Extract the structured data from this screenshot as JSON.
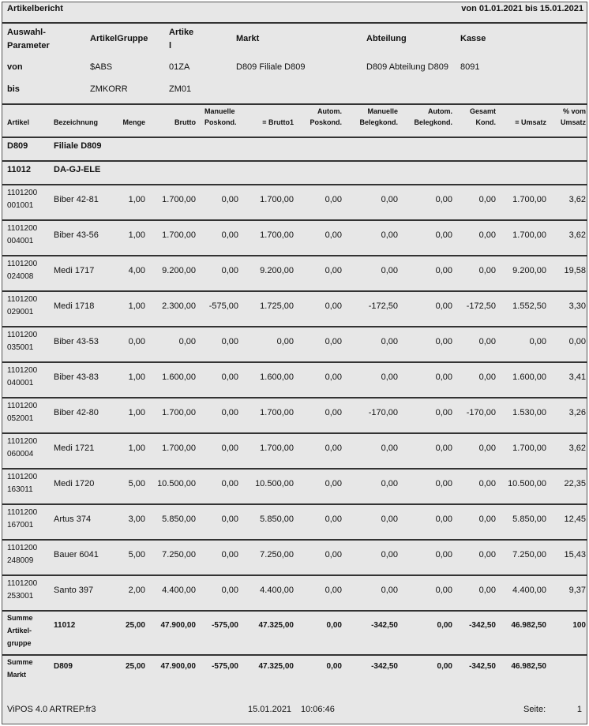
{
  "report": {
    "title": "Artikelbericht",
    "period": "von 01.01.2021 bis 15.01.2021"
  },
  "params": {
    "labels": [
      "Auswahl-\nParameter",
      "ArtikelGruppe",
      "Artike\nl",
      "Markt",
      "Abteilung",
      "Kasse"
    ],
    "von": {
      "label": "von",
      "values": [
        "$ABS",
        "01ZA",
        "D809 Filiale D809",
        "D809 Abteilung D809",
        "8091"
      ]
    },
    "bis": {
      "label": "bis",
      "values": [
        "ZMKORR",
        "ZM01"
      ]
    }
  },
  "columns": [
    "Artikel",
    "Bezeichnung",
    "Menge",
    "Brutto",
    "Manuelle\nPoskond.",
    "= Brutto1",
    "Autom.\nPoskond.",
    "Manuelle\nBelegkond.",
    "Autom.\nBelegkond.",
    "Gesamt\nKond.",
    "= Umsatz",
    "% vom\nUmsatz"
  ],
  "groups": {
    "markt": [
      "D809",
      "Filiale D809"
    ],
    "artikelgruppe": [
      "11012",
      "DA-GJ-ELE"
    ]
  },
  "rows": [
    [
      "1101200\n001001",
      "Biber 42-81",
      "1,00",
      "1.700,00",
      "0,00",
      "1.700,00",
      "0,00",
      "0,00",
      "0,00",
      "0,00",
      "1.700,00",
      "3,62"
    ],
    [
      "1101200\n004001",
      "Biber 43-56",
      "1,00",
      "1.700,00",
      "0,00",
      "1.700,00",
      "0,00",
      "0,00",
      "0,00",
      "0,00",
      "1.700,00",
      "3,62"
    ],
    [
      "1101200\n024008",
      "Medi 1717",
      "4,00",
      "9.200,00",
      "0,00",
      "9.200,00",
      "0,00",
      "0,00",
      "0,00",
      "0,00",
      "9.200,00",
      "19,58"
    ],
    [
      "1101200\n029001",
      "Medi 1718",
      "1,00",
      "2.300,00",
      "-575,00",
      "1.725,00",
      "0,00",
      "-172,50",
      "0,00",
      "-172,50",
      "1.552,50",
      "3,30"
    ],
    [
      "1101200\n035001",
      "Biber 43-53",
      "0,00",
      "0,00",
      "0,00",
      "0,00",
      "0,00",
      "0,00",
      "0,00",
      "0,00",
      "0,00",
      "0,00"
    ],
    [
      "1101200\n040001",
      "Biber 43-83",
      "1,00",
      "1.600,00",
      "0,00",
      "1.600,00",
      "0,00",
      "0,00",
      "0,00",
      "0,00",
      "1.600,00",
      "3,41"
    ],
    [
      "1101200\n052001",
      "Biber 42-80",
      "1,00",
      "1.700,00",
      "0,00",
      "1.700,00",
      "0,00",
      "-170,00",
      "0,00",
      "-170,00",
      "1.530,00",
      "3,26"
    ],
    [
      "1101200\n060004",
      "Medi 1721",
      "1,00",
      "1.700,00",
      "0,00",
      "1.700,00",
      "0,00",
      "0,00",
      "0,00",
      "0,00",
      "1.700,00",
      "3,62"
    ],
    [
      "1101200\n163011",
      "Medi 1720",
      "5,00",
      "10.500,00",
      "0,00",
      "10.500,00",
      "0,00",
      "0,00",
      "0,00",
      "0,00",
      "10.500,00",
      "22,35"
    ],
    [
      "1101200\n167001",
      "Artus 374",
      "3,00",
      "5.850,00",
      "0,00",
      "5.850,00",
      "0,00",
      "0,00",
      "0,00",
      "0,00",
      "5.850,00",
      "12,45"
    ],
    [
      "1101200\n248009",
      "Bauer 6041",
      "5,00",
      "7.250,00",
      "0,00",
      "7.250,00",
      "0,00",
      "0,00",
      "0,00",
      "0,00",
      "7.250,00",
      "15,43"
    ],
    [
      "1101200\n253001",
      "Santo 397",
      "2,00",
      "4.400,00",
      "0,00",
      "4.400,00",
      "0,00",
      "0,00",
      "0,00",
      "0,00",
      "4.400,00",
      "9,37"
    ]
  ],
  "sums": [
    [
      "Summe\nArtikel-\ngruppe",
      "11012",
      "25,00",
      "47.900,00",
      "-575,00",
      "47.325,00",
      "0,00",
      "-342,50",
      "0,00",
      "-342,50",
      "46.982,50",
      "100"
    ],
    [
      "Summe\nMarkt",
      "D809",
      "25,00",
      "47.900,00",
      "-575,00",
      "47.325,00",
      "0,00",
      "-342,50",
      "0,00",
      "-342,50",
      "46.982,50",
      ""
    ]
  ],
  "footer": {
    "program": "ViPOS 4.0 ARTREP.fr3",
    "date": "15.01.2021",
    "time": "10:06:46",
    "page_label": "Seite:",
    "page": "1"
  }
}
